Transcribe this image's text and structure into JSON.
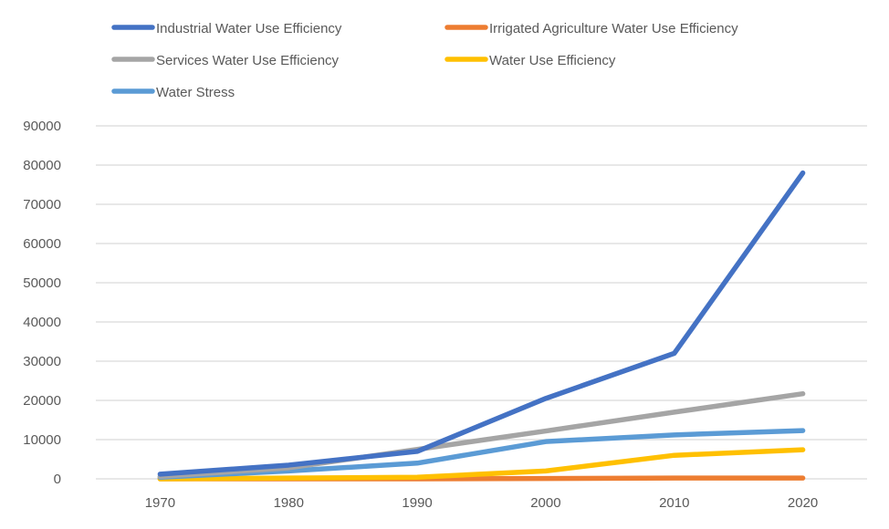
{
  "chart_data": {
    "type": "line",
    "title": "",
    "xlabel": "",
    "ylabel": "",
    "categories": [
      "1970",
      "1980",
      "1990",
      "2000",
      "2010",
      "2020"
    ],
    "ylim": [
      0,
      90000
    ],
    "yticks": [
      0,
      10000,
      20000,
      30000,
      40000,
      50000,
      60000,
      70000,
      80000,
      90000
    ],
    "grid": true,
    "legend_position": "top",
    "series": [
      {
        "name": "Industrial Water Use Efficiency",
        "color": "#4472C4",
        "values": [
          1200,
          3500,
          7000,
          20500,
          32000,
          78000
        ]
      },
      {
        "name": "Irrigated Agriculture Water Use Efficiency",
        "color": "#ED7D31",
        "values": [
          0,
          0,
          0,
          100,
          200,
          200
        ]
      },
      {
        "name": "Services Water Use Efficiency",
        "color": "#A5A5A5",
        "values": [
          600,
          2800,
          7500,
          12200,
          17000,
          21700
        ]
      },
      {
        "name": "Water Use Efficiency",
        "color": "#FFC000",
        "values": [
          0,
          200,
          400,
          2000,
          6000,
          7400
        ]
      },
      {
        "name": "Water Stress",
        "color": "#5B9BD5",
        "values": [
          400,
          2000,
          4000,
          9500,
          11200,
          12300
        ]
      }
    ]
  }
}
